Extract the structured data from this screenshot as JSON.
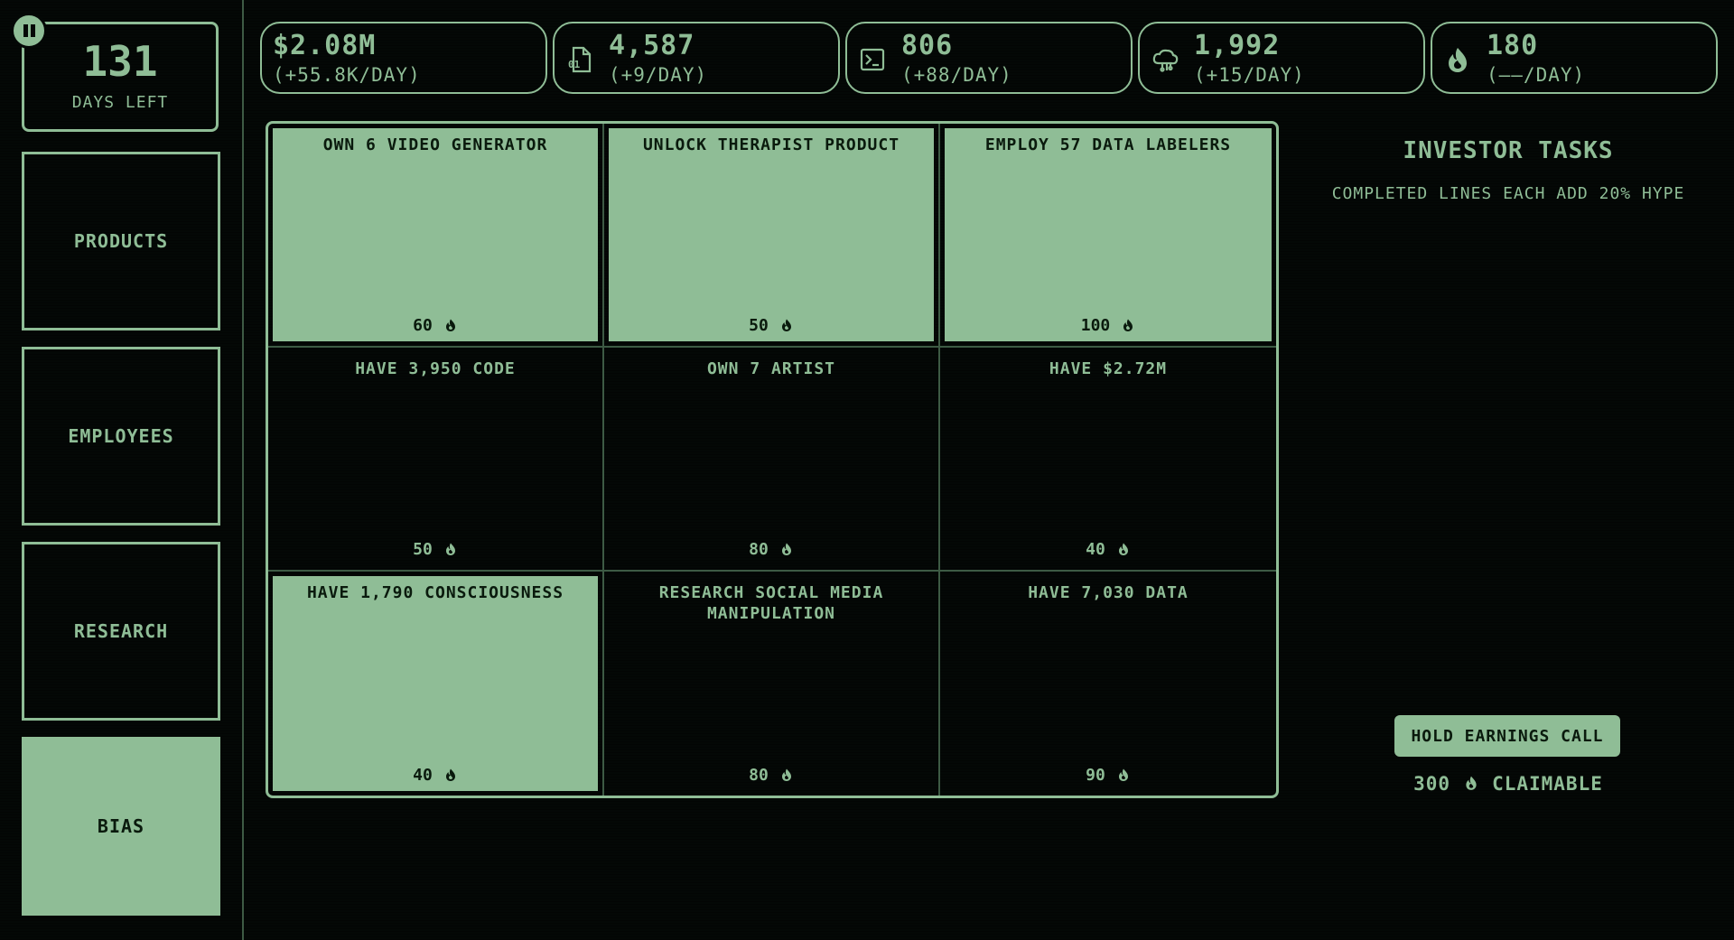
{
  "sidebar": {
    "days": {
      "value": "131",
      "label": "DAYS LEFT"
    },
    "nav": [
      {
        "label": "PRODUCTS",
        "active": false
      },
      {
        "label": "EMPLOYEES",
        "active": false
      },
      {
        "label": "RESEARCH",
        "active": false
      },
      {
        "label": "BIAS",
        "active": true
      }
    ]
  },
  "stats": [
    {
      "value": "$2.08M",
      "rate": "(+55.8K/DAY)",
      "icon": "money"
    },
    {
      "value": "4,587",
      "rate": "(+9/DAY)",
      "icon": "data-file-icon"
    },
    {
      "value": "806",
      "rate": "(+88/DAY)",
      "icon": "terminal-icon"
    },
    {
      "value": "1,992",
      "rate": "(+15/DAY)",
      "icon": "brain-cloud-icon"
    },
    {
      "value": "180",
      "rate": "(——/DAY)",
      "icon": "flame-icon"
    }
  ],
  "tasks": [
    {
      "title": "OWN 6 VIDEO GENERATOR",
      "reward": "60",
      "done": true
    },
    {
      "title": "UNLOCK THERAPIST PRODUCT",
      "reward": "50",
      "done": true
    },
    {
      "title": "EMPLOY 57 DATA LABELERS",
      "reward": "100",
      "done": true
    },
    {
      "title": "HAVE 3,950 CODE",
      "reward": "50",
      "done": false
    },
    {
      "title": "OWN 7 ARTIST",
      "reward": "80",
      "done": false
    },
    {
      "title": "HAVE $2.72M",
      "reward": "40",
      "done": false
    },
    {
      "title": "HAVE 1,790 CONSCIOUSNESS",
      "reward": "40",
      "done": true
    },
    {
      "title": "RESEARCH SOCIAL MEDIA MANIPULATION",
      "reward": "80",
      "done": false
    },
    {
      "title": "HAVE 7,030 DATA",
      "reward": "90",
      "done": false
    }
  ],
  "investor": {
    "title": "INVESTOR TASKS",
    "subtitle": "COMPLETED LINES EACH ADD 20% HYPE",
    "button": "HOLD EARNINGS CALL",
    "claim_amount": "300",
    "claim_label": "CLAIMABLE"
  },
  "colors": {
    "accent": "#8fbd96",
    "background": "#040806",
    "divider": "#3d5a44",
    "dark_text": "#0a1a0d"
  }
}
